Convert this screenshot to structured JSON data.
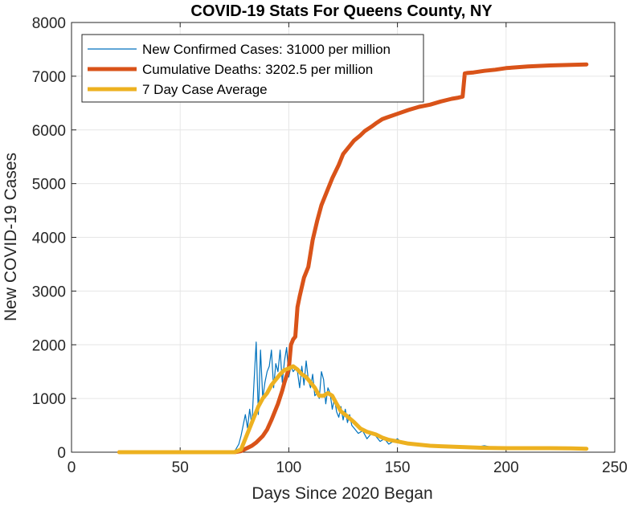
{
  "chart_data": {
    "type": "line",
    "title": "COVID-19 Stats For Queens County, NY",
    "xlabel": "Days Since 2020 Began",
    "ylabel": "New COVID-19 Cases",
    "xlim": [
      0,
      250
    ],
    "ylim": [
      0,
      8000
    ],
    "xticks": [
      0,
      50,
      100,
      150,
      200,
      250
    ],
    "yticks": [
      0,
      1000,
      2000,
      3000,
      4000,
      5000,
      6000,
      7000,
      8000
    ],
    "grid": true,
    "legend_position": "top-left",
    "series": [
      {
        "name": "New Confirmed Cases: 31000 per million",
        "color": "#0072BD",
        "line": "thin",
        "x": [
          22,
          30,
          40,
          50,
          60,
          70,
          75,
          77,
          78,
          79,
          80,
          81,
          82,
          83,
          84,
          85,
          86,
          87,
          88,
          89,
          90,
          91,
          92,
          93,
          94,
          95,
          96,
          97,
          98,
          99,
          100,
          101,
          102,
          103,
          104,
          105,
          106,
          107,
          108,
          109,
          110,
          111,
          112,
          113,
          114,
          115,
          116,
          117,
          118,
          119,
          120,
          121,
          122,
          123,
          124,
          125,
          126,
          127,
          128,
          129,
          130,
          132,
          134,
          136,
          138,
          140,
          142,
          144,
          146,
          148,
          150,
          152,
          155,
          160,
          165,
          170,
          175,
          180,
          185,
          190,
          195,
          200,
          205,
          210,
          215,
          220,
          225,
          230,
          236
        ],
        "values": [
          0,
          0,
          0,
          0,
          0,
          0,
          10,
          150,
          300,
          500,
          700,
          450,
          800,
          500,
          1300,
          2050,
          700,
          1900,
          1000,
          1300,
          1500,
          1600,
          1900,
          1200,
          1650,
          1500,
          1900,
          1300,
          1700,
          1950,
          1400,
          1600,
          1500,
          1550,
          1500,
          1200,
          1600,
          1250,
          1700,
          1350,
          1200,
          1450,
          1050,
          1100,
          1000,
          1500,
          1350,
          900,
          1200,
          1100,
          800,
          1000,
          750,
          650,
          850,
          600,
          800,
          550,
          700,
          500,
          450,
          350,
          400,
          250,
          350,
          300,
          200,
          250,
          150,
          200,
          250,
          180,
          150,
          130,
          120,
          110,
          100,
          100,
          90,
          120,
          80,
          70,
          80,
          90,
          60,
          70,
          60,
          70,
          60
        ]
      },
      {
        "name": "Cumulative Deaths: 3202.5 per million",
        "color": "#D95319",
        "line": "thick",
        "x": [
          22,
          40,
          60,
          75,
          78,
          80,
          83,
          85,
          88,
          90,
          92,
          95,
          97,
          98,
          100,
          101,
          102,
          103,
          104,
          105,
          107,
          109,
          111,
          113,
          115,
          118,
          120,
          123,
          125,
          128,
          130,
          133,
          135,
          138,
          140,
          143,
          145,
          150,
          155,
          160,
          165,
          170,
          175,
          178,
          180,
          181,
          182,
          185,
          190,
          195,
          200,
          210,
          220,
          230,
          237
        ],
        "values": [
          0,
          0,
          0,
          0,
          20,
          60,
          120,
          180,
          300,
          420,
          600,
          900,
          1150,
          1300,
          1550,
          2000,
          2100,
          2150,
          2700,
          2900,
          3250,
          3450,
          3950,
          4300,
          4600,
          4900,
          5100,
          5350,
          5550,
          5700,
          5800,
          5900,
          5980,
          6060,
          6120,
          6200,
          6230,
          6300,
          6370,
          6430,
          6470,
          6530,
          6580,
          6600,
          6620,
          7050,
          7060,
          7070,
          7100,
          7120,
          7150,
          7180,
          7200,
          7210,
          7220
        ]
      },
      {
        "name": "7 Day Case Average",
        "color": "#EDB120",
        "line": "thick",
        "x": [
          22,
          40,
          60,
          75,
          78,
          80,
          82,
          84,
          86,
          88,
          90,
          92,
          94,
          96,
          98,
          100,
          102,
          104,
          106,
          108,
          110,
          112,
          114,
          116,
          118,
          120,
          122,
          124,
          126,
          128,
          130,
          133,
          136,
          140,
          143,
          146,
          150,
          155,
          160,
          165,
          170,
          180,
          190,
          200,
          210,
          220,
          230,
          237
        ],
        "values": [
          0,
          0,
          0,
          0,
          50,
          250,
          450,
          650,
          850,
          1000,
          1100,
          1250,
          1350,
          1450,
          1530,
          1560,
          1600,
          1540,
          1450,
          1400,
          1300,
          1200,
          1050,
          1050,
          1100,
          1050,
          900,
          760,
          700,
          630,
          560,
          440,
          380,
          330,
          270,
          230,
          200,
          160,
          140,
          120,
          110,
          95,
          80,
          75,
          75,
          75,
          70,
          65
        ]
      }
    ]
  }
}
